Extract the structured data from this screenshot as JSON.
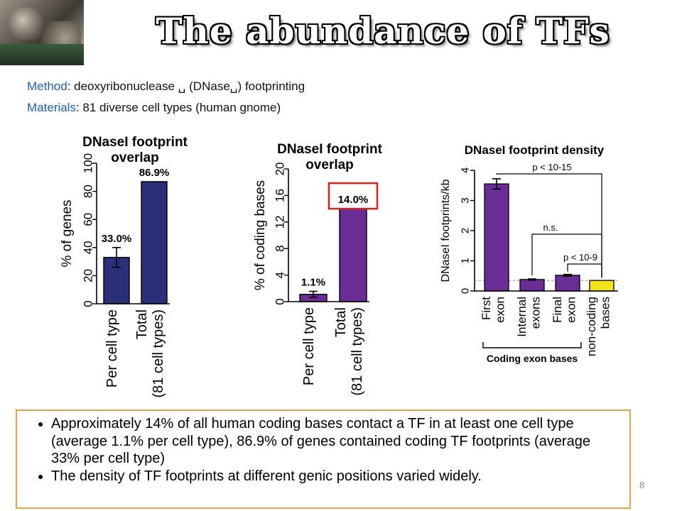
{
  "slide": {
    "title": "The abundance of TFs",
    "method_key": "Method",
    "method_text": ": deoxyribonuclease ␣ (DNase␣) footprinting",
    "materials_key": "Materials",
    "materials_text": ": 81 diverse cell types (human gnome)",
    "page_number": "8",
    "bullets": [
      "Approximately 14% of all human coding bases contact a TF in at least one cell type (average 1.1% per cell type), 86.9% of genes contained coding TF footprints (average 33% per cell type)",
      "The density of TF footprints at different genic positions varied widely."
    ]
  },
  "colors": {
    "navy_bar": "#2a2f78",
    "purple_bar": "#6a2d96",
    "yellow_bar": "#f4e31a",
    "highlight_box": "#e0201c",
    "method_key": "#1f5fa8",
    "bullet_border": "#e9a04a"
  },
  "chart_data": [
    {
      "type": "bar",
      "title": "DNaseI footprint overlap",
      "ylabel": "% of genes",
      "ylim": [
        0,
        100
      ],
      "yticks": [
        0,
        20,
        40,
        60,
        80,
        100
      ],
      "categories": [
        "Per cell type",
        "Total\n(81 cell types)"
      ],
      "values": [
        33.0,
        86.9
      ],
      "error": [
        7,
        0
      ],
      "data_labels": [
        "33.0%",
        "86.9%"
      ]
    },
    {
      "type": "bar",
      "title": "DNaseI footprint overlap",
      "ylabel": "% of coding bases",
      "ylim": [
        0,
        20
      ],
      "yticks": [
        0,
        4,
        8,
        12,
        16,
        20
      ],
      "categories": [
        "Per cell type",
        "Total\n(81 cell types)"
      ],
      "values": [
        1.1,
        14.0
      ],
      "error": [
        0.45,
        0
      ],
      "data_labels": [
        "1.1%",
        "14.0%"
      ],
      "highlighted_label": "14.0%"
    },
    {
      "type": "bar",
      "title": "DNaseI footprint density",
      "ylabel": "DNaseI footprints/kb",
      "ylim": [
        0,
        4
      ],
      "yticks": [
        0,
        1,
        2,
        3,
        4
      ],
      "categories": [
        "First\nexon",
        "Internal\nexons",
        "Final\nexon",
        "non-coding\nbases"
      ],
      "values": [
        3.55,
        0.38,
        0.52,
        0.35
      ],
      "error": [
        0.17,
        0.02,
        0.03,
        0
      ],
      "group_label": "Coding exon bases",
      "annotations": [
        "p < 10-15",
        "n.s.",
        "p < 10-9"
      ]
    }
  ]
}
